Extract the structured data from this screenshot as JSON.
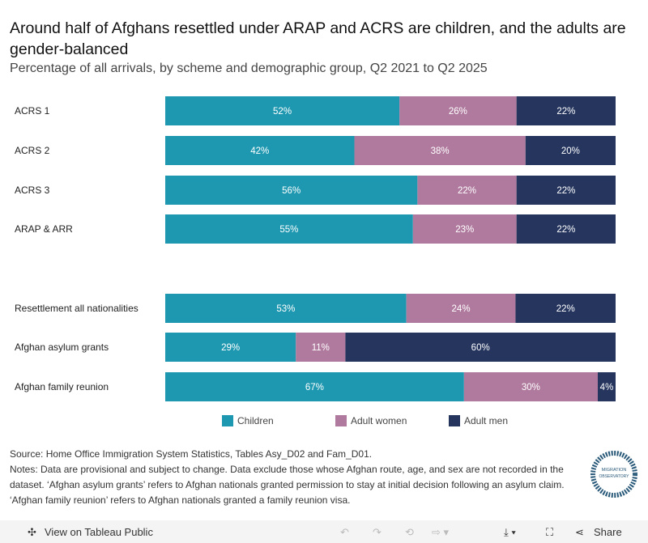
{
  "title": "Around half of Afghans resettled under ARAP and ACRS are children, and the adults are gender-balanced",
  "subtitle": "Percentage of all arrivals, by scheme and demographic group, Q2 2021 to Q2 2025",
  "chart_data": {
    "type": "bar",
    "orientation": "horizontal",
    "stacked": true,
    "categories": [
      "ACRS 1",
      "ACRS 2",
      "ACRS 3",
      "ARAP & ARR",
      "Resettlement all nationalities",
      "Afghan asylum grants",
      "Afghan family reunion"
    ],
    "series": [
      {
        "name": "Children",
        "color": "#1e98b0",
        "values": [
          52,
          42,
          56,
          55,
          53,
          29,
          67
        ]
      },
      {
        "name": "Adult women",
        "color": "#b07a9e",
        "values": [
          26,
          38,
          22,
          23,
          24,
          11,
          30
        ]
      },
      {
        "name": "Adult men",
        "color": "#25355e",
        "values": [
          22,
          20,
          22,
          22,
          22,
          60,
          4
        ]
      }
    ],
    "unit": "%",
    "legend": "bottom"
  },
  "notes": {
    "source": "Source: Home Office Immigration System Statistics, Tables Asy_D02 and Fam_D01.",
    "text": "Notes: Data are provisional and subject to change. Data exclude those whose Afghan route, age, and sex are not recorded in the dataset. ‘Afghan asylum grants’ refers to Afghan nationals granted permission to stay at initial decision following an asylum claim. ‘Afghan family reunion’ refers to Afghan nationals granted a family reunion visa."
  },
  "logo": "THE MIGRATION OBSERVATORY",
  "toolbar": {
    "view": "View on Tableau Public",
    "share": "Share"
  }
}
